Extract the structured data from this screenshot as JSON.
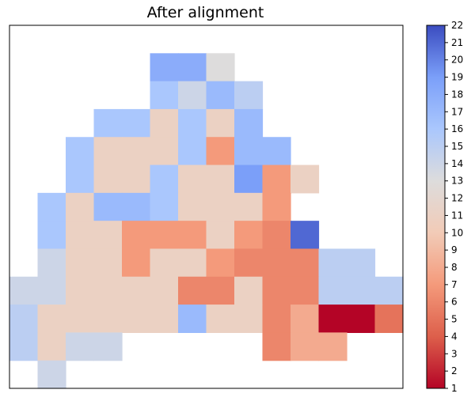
{
  "chart_data": {
    "type": "heatmap",
    "title": "After alignment",
    "rows": 13,
    "cols": 14,
    "nan_color": "#ffffff",
    "colorbar": {
      "colormap": "coolwarm_r",
      "vmin": 1,
      "vmax": 22,
      "ticks": [
        1,
        2,
        3,
        4,
        5,
        6,
        7,
        8,
        9,
        10,
        11,
        12,
        13,
        14,
        15,
        16,
        17,
        18,
        19,
        20,
        21,
        22
      ],
      "stops": [
        "#b40426",
        "#dd5f4b",
        "#f49a7b",
        "#f2cbb7",
        "#dddcdc",
        "#aac7fd",
        "#7b9ff9",
        "#3b4cc0"
      ]
    },
    "grid": [
      [
        null,
        null,
        null,
        null,
        null,
        null,
        null,
        null,
        null,
        null,
        null,
        null,
        null,
        null
      ],
      [
        null,
        null,
        null,
        null,
        null,
        18,
        18,
        13,
        null,
        null,
        null,
        null,
        null,
        null
      ],
      [
        null,
        null,
        null,
        null,
        null,
        16,
        14,
        17,
        15,
        null,
        null,
        null,
        null,
        null
      ],
      [
        null,
        null,
        null,
        16,
        16,
        11,
        16,
        11,
        17,
        null,
        null,
        null,
        null,
        null
      ],
      [
        null,
        null,
        16,
        11,
        11,
        11,
        16,
        7,
        17,
        17,
        null,
        null,
        null,
        null
      ],
      [
        null,
        null,
        16,
        11,
        11,
        16,
        11,
        11,
        19,
        7,
        11,
        null,
        null,
        null
      ],
      [
        null,
        16,
        11,
        17,
        17,
        16,
        11,
        11,
        11,
        7,
        null,
        null,
        null,
        null
      ],
      [
        null,
        16,
        11,
        11,
        7,
        7,
        7,
        11,
        7,
        6,
        21,
        null,
        null,
        null
      ],
      [
        null,
        14,
        11,
        11,
        7,
        11,
        11,
        7,
        6,
        6,
        6,
        15,
        15,
        null
      ],
      [
        14,
        14,
        11,
        11,
        11,
        11,
        6,
        6,
        11,
        6,
        6,
        15,
        15,
        15
      ],
      [
        15,
        11,
        11,
        11,
        11,
        11,
        17,
        11,
        11,
        6,
        8,
        1,
        1,
        5
      ],
      [
        15,
        11,
        14,
        14,
        null,
        null,
        null,
        null,
        null,
        6,
        8,
        8,
        null,
        null
      ],
      [
        null,
        14,
        null,
        null,
        null,
        null,
        null,
        null,
        null,
        null,
        null,
        null,
        null,
        null
      ]
    ]
  }
}
